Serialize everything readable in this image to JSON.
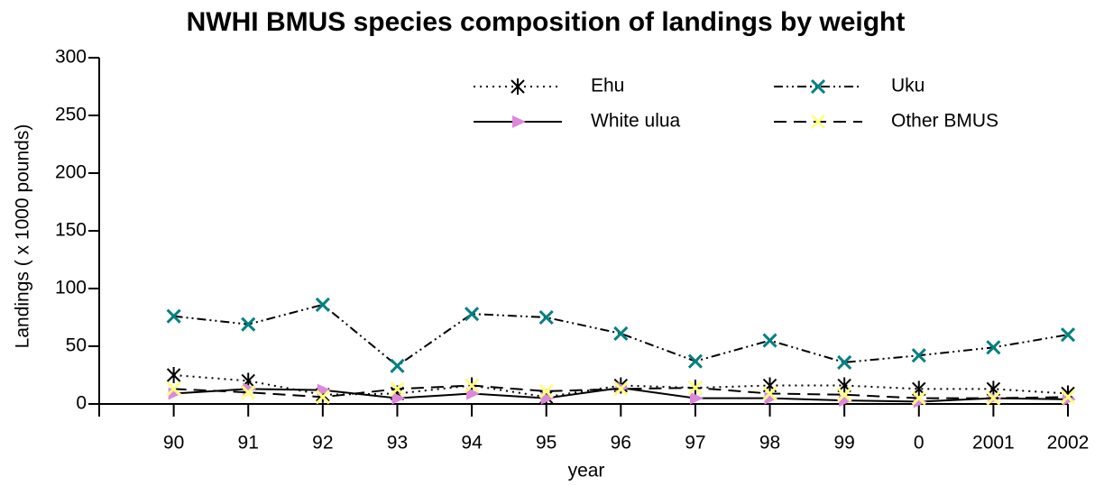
{
  "chart_data": {
    "type": "line",
    "title": "NWHI BMUS species composition of landings by weight",
    "x_label": "year",
    "y_label": "Landings ( x 1000 pounds)",
    "categories": [
      null,
      "90",
      "91",
      "92",
      "93",
      "94",
      "95",
      "96",
      "97",
      "98",
      "99",
      "0",
      "2001",
      "2002"
    ],
    "ylim": [
      0,
      300
    ],
    "yticks": [
      0,
      50,
      100,
      150,
      200,
      250,
      300
    ],
    "grid": false,
    "series": [
      {
        "name": "Ehu",
        "color": "#000000",
        "marker": "asterisk",
        "line_style": "dotted",
        "values": [
          null,
          25,
          20,
          8,
          9,
          16,
          6,
          16,
          14,
          16,
          16,
          13,
          13,
          9
        ]
      },
      {
        "name": "Uku",
        "color": "#008080",
        "marker": "x",
        "line_style": "dashdotdot",
        "values": [
          null,
          76,
          69,
          86,
          33,
          78,
          75,
          61,
          37,
          55,
          36,
          42,
          49,
          60
        ]
      },
      {
        "name": "White ulua",
        "color": "#dd88dd",
        "marker": "triangle",
        "line_style": "solid",
        "values": [
          null,
          9,
          13,
          12,
          5,
          9,
          5,
          14,
          5,
          5,
          3,
          2,
          5,
          4
        ]
      },
      {
        "name": "Other BMUS",
        "color": "#ffff80",
        "marker": "x",
        "line_style": "dashed",
        "values": [
          null,
          13,
          10,
          6,
          13,
          16,
          11,
          13,
          14,
          9,
          8,
          5,
          5,
          6
        ]
      }
    ]
  }
}
